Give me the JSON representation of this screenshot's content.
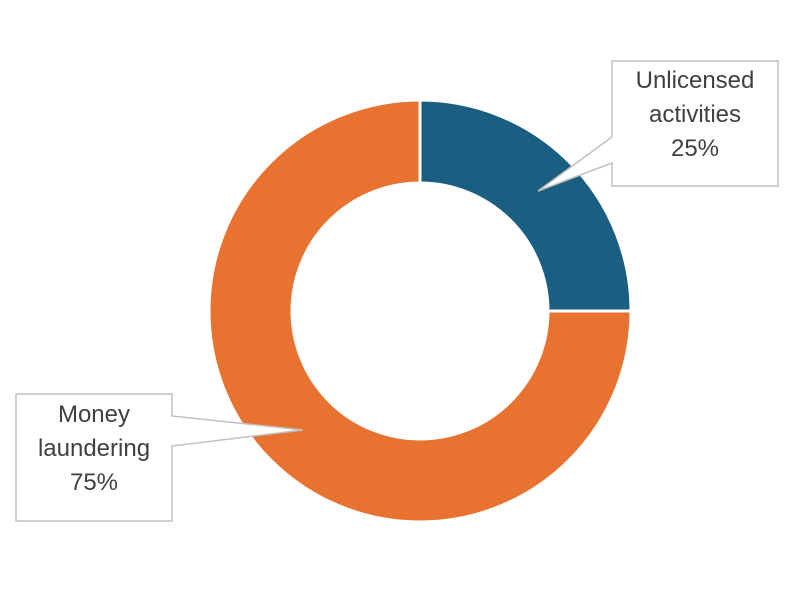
{
  "chart_data": {
    "type": "pie",
    "subtype": "doughnut",
    "title": "",
    "categories": [
      "Unlicensed activities",
      "Money laundering"
    ],
    "values": [
      25,
      75
    ],
    "value_unit": "%",
    "colors": [
      "#1a5e82",
      "#e8722f"
    ],
    "data_labels": [
      {
        "name_lines": [
          "Unlicensed",
          "activities"
        ],
        "value": "25%"
      },
      {
        "name_lines": [
          "Money",
          "laundering"
        ],
        "value": "75%"
      }
    ],
    "start_angle_deg": 0,
    "direction": "clockwise",
    "legend": "none",
    "callout_border_color": "#c0c0c0",
    "slice_border_color": "#ffffff"
  }
}
